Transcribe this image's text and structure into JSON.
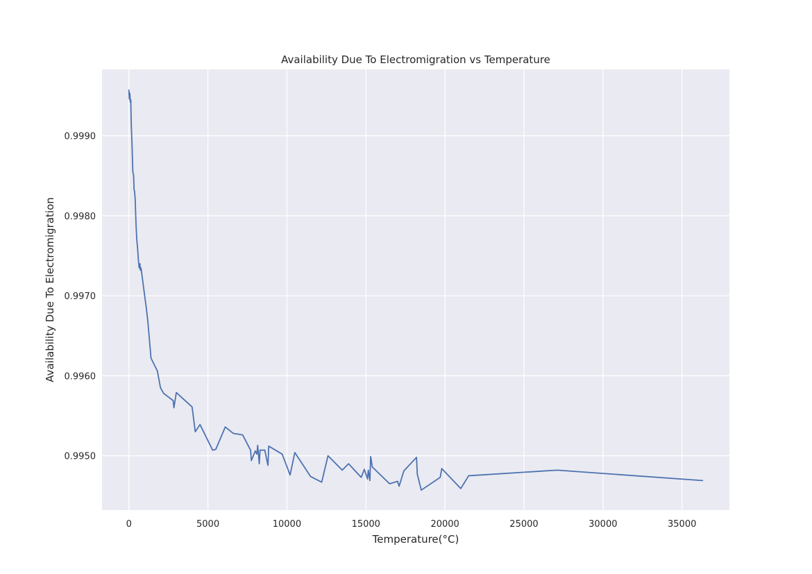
{
  "chart_data": {
    "type": "line",
    "title": "Availability Due To Electromigration vs Temperature",
    "xlabel": "Temperature(°C)",
    "ylabel": "Availability Due To Electromigration",
    "xlim": [
      -1700,
      38000
    ],
    "ylim": [
      0.99432,
      0.99983
    ],
    "xticks": [
      0,
      5000,
      10000,
      15000,
      20000,
      25000,
      30000,
      35000
    ],
    "xtick_labels": [
      "0",
      "5000",
      "10000",
      "15000",
      "20000",
      "25000",
      "30000",
      "35000"
    ],
    "yticks": [
      0.996,
      0.997,
      0.998,
      0.999,
      0.995
    ],
    "ytick_labels": [
      "0.9960",
      "0.9970",
      "0.9980",
      "0.9990",
      "0.9950"
    ],
    "grid": true,
    "background_color": "#eaeaf2",
    "grid_color": "#ffffff",
    "line_color": "#4c72b0",
    "series": [
      {
        "x": [
          0,
          30,
          60,
          90,
          120,
          150,
          200,
          250,
          300,
          330,
          360,
          400,
          450,
          500,
          550,
          600,
          650,
          700,
          720,
          760,
          800,
          900,
          1000,
          1100,
          1200,
          1300,
          1400,
          1600,
          1800,
          2000,
          2200,
          2400,
          2800,
          2850,
          3000,
          3500,
          4000,
          4200,
          4500,
          5300,
          5500,
          6100,
          6600,
          7200,
          7700,
          7750,
          8000,
          8100,
          8150,
          8250,
          8300,
          8600,
          8800,
          8850,
          9700,
          10200,
          10500,
          11500,
          12200,
          12600,
          13500,
          13900,
          14700,
          14900,
          15100,
          15150,
          15250,
          15300,
          15400,
          16500,
          17000,
          17100,
          17400,
          18200,
          18250,
          18500,
          19700,
          19800,
          21000,
          21500,
          27100,
          36300
        ],
        "y": [
          0.99957,
          0.99946,
          0.99953,
          0.99942,
          0.99945,
          0.99915,
          0.99888,
          0.99855,
          0.9985,
          0.99832,
          0.99831,
          0.9982,
          0.9979,
          0.9977,
          0.9976,
          0.99745,
          0.99735,
          0.9974,
          0.99732,
          0.99735,
          0.9973,
          0.99715,
          0.997,
          0.99685,
          0.99668,
          0.99645,
          0.99622,
          0.99614,
          0.99606,
          0.99585,
          0.99578,
          0.99575,
          0.99569,
          0.9956,
          0.99579,
          0.9957,
          0.99561,
          0.9953,
          0.99539,
          0.99507,
          0.99508,
          0.99536,
          0.99528,
          0.99526,
          0.99507,
          0.99494,
          0.99506,
          0.99502,
          0.99513,
          0.9949,
          0.99507,
          0.99507,
          0.99488,
          0.99512,
          0.99502,
          0.99476,
          0.99504,
          0.99474,
          0.99467,
          0.995,
          0.99482,
          0.9949,
          0.99473,
          0.99483,
          0.99471,
          0.99482,
          0.99469,
          0.99499,
          0.99486,
          0.99465,
          0.99468,
          0.99462,
          0.99481,
          0.99498,
          0.99477,
          0.99457,
          0.99473,
          0.99484,
          0.99459,
          0.99475,
          0.99482,
          0.99469
        ]
      }
    ]
  }
}
